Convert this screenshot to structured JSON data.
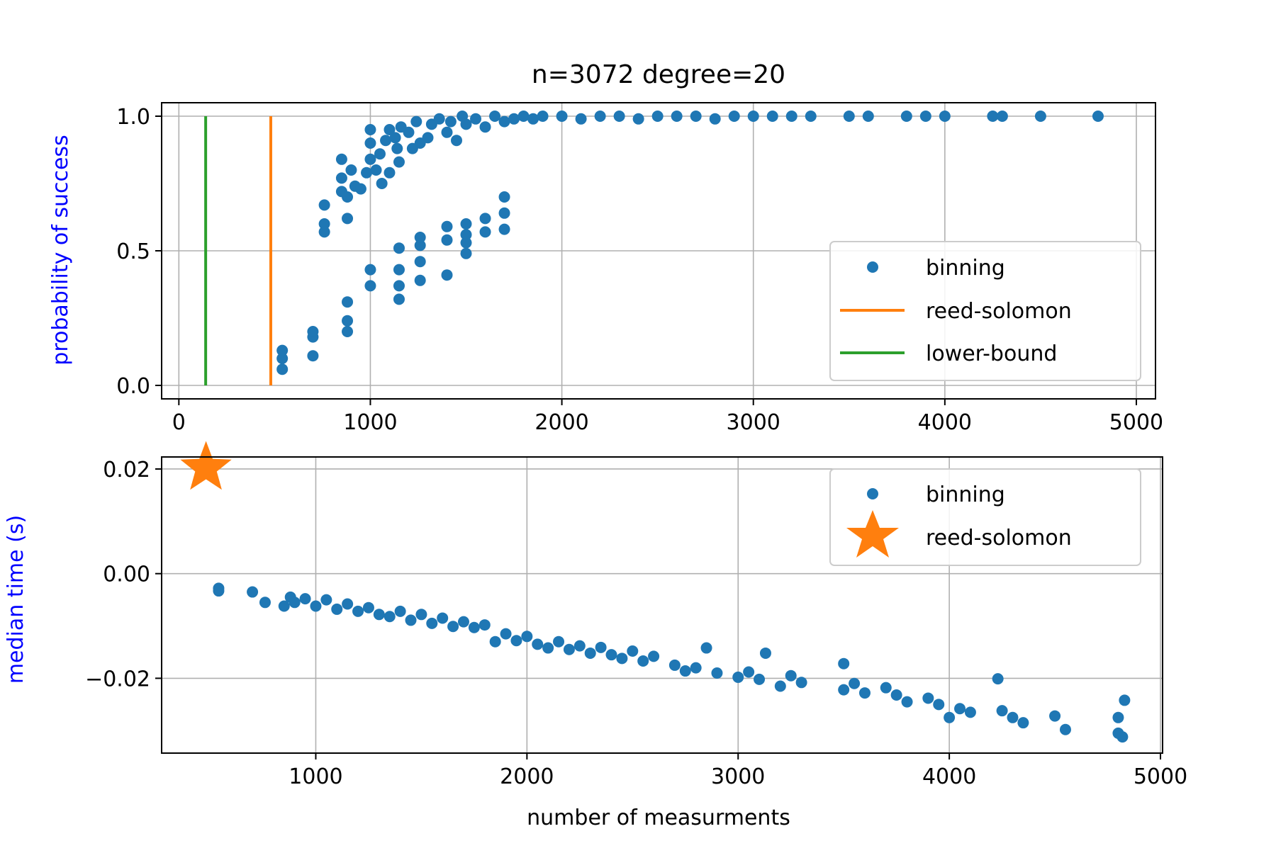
{
  "figure": {
    "title": "n=3072 degree=20"
  },
  "chart_data": [
    {
      "type": "scatter",
      "title": "n=3072 degree=20",
      "xlabel": "",
      "ylabel": "probability of success",
      "xlim": [
        -90,
        5100
      ],
      "ylim": [
        -0.05,
        1.05
      ],
      "xticks": [
        0,
        1000,
        2000,
        3000,
        4000,
        5000
      ],
      "yticks": [
        0.0,
        0.5,
        1.0
      ],
      "xtick_labels": [
        "0",
        "1000",
        "2000",
        "3000",
        "4000",
        "5000"
      ],
      "ytick_labels": [
        "0.0",
        "0.5",
        "1.0"
      ],
      "grid": true,
      "legend_position": "center-right",
      "colors": {
        "binning": "#1f77b4",
        "reed-solomon": "#ff7f0e",
        "lower-bound": "#2ca02c",
        "ylabel": "#0000ff"
      },
      "lines": [
        {
          "name": "reed-solomon",
          "x": 480,
          "y": [
            0,
            1
          ]
        },
        {
          "name": "lower-bound",
          "x": 140,
          "y": [
            0,
            1
          ]
        }
      ],
      "series": [
        {
          "name": "binning",
          "upper": [
            [
              540,
              0.06
            ],
            [
              540,
              0.1
            ],
            [
              540,
              0.13
            ],
            [
              700,
              0.11
            ],
            [
              700,
              0.18
            ],
            [
              700,
              0.2
            ],
            [
              760,
              0.57
            ],
            [
              760,
              0.6
            ],
            [
              760,
              0.67
            ],
            [
              850,
              0.72
            ],
            [
              850,
              0.77
            ],
            [
              850,
              0.84
            ],
            [
              880,
              0.62
            ],
            [
              880,
              0.7
            ],
            [
              900,
              0.8
            ],
            [
              920,
              0.74
            ],
            [
              950,
              0.73
            ],
            [
              980,
              0.79
            ],
            [
              1000,
              0.84
            ],
            [
              1000,
              0.9
            ],
            [
              1000,
              0.95
            ],
            [
              1030,
              0.8
            ],
            [
              1050,
              0.86
            ],
            [
              1060,
              0.75
            ],
            [
              1080,
              0.91
            ],
            [
              1100,
              0.79
            ],
            [
              1100,
              0.95
            ],
            [
              1130,
              0.92
            ],
            [
              1140,
              0.88
            ],
            [
              1150,
              0.83
            ],
            [
              1160,
              0.96
            ],
            [
              1200,
              0.94
            ],
            [
              1220,
              0.88
            ],
            [
              1240,
              0.98
            ],
            [
              1260,
              0.9
            ],
            [
              1300,
              0.92
            ],
            [
              1320,
              0.97
            ],
            [
              1360,
              0.99
            ],
            [
              1400,
              0.94
            ],
            [
              1420,
              0.98
            ],
            [
              1450,
              0.91
            ],
            [
              1480,
              1.0
            ],
            [
              1500,
              0.97
            ],
            [
              1550,
              0.99
            ],
            [
              1600,
              0.96
            ],
            [
              1650,
              1.0
            ],
            [
              1700,
              0.98
            ],
            [
              1750,
              0.99
            ],
            [
              1800,
              1.0
            ],
            [
              1850,
              0.99
            ],
            [
              1900,
              1.0
            ],
            [
              2000,
              1.0
            ],
            [
              2100,
              0.99
            ],
            [
              2200,
              1.0
            ],
            [
              2300,
              1.0
            ],
            [
              2400,
              0.99
            ],
            [
              2500,
              1.0
            ],
            [
              2600,
              1.0
            ],
            [
              2700,
              1.0
            ],
            [
              2800,
              0.99
            ],
            [
              2900,
              1.0
            ],
            [
              3000,
              1.0
            ],
            [
              3100,
              1.0
            ],
            [
              3200,
              1.0
            ],
            [
              3300,
              1.0
            ],
            [
              3500,
              1.0
            ],
            [
              3600,
              1.0
            ],
            [
              3800,
              1.0
            ],
            [
              3900,
              1.0
            ],
            [
              4000,
              1.0
            ],
            [
              4250,
              1.0
            ],
            [
              4300,
              1.0
            ],
            [
              4500,
              1.0
            ],
            [
              4800,
              1.0
            ]
          ],
          "lower": [
            [
              880,
              0.2
            ],
            [
              880,
              0.24
            ],
            [
              880,
              0.31
            ],
            [
              1000,
              0.37
            ],
            [
              1000,
              0.43
            ],
            [
              1150,
              0.32
            ],
            [
              1150,
              0.37
            ],
            [
              1150,
              0.43
            ],
            [
              1150,
              0.51
            ],
            [
              1260,
              0.39
            ],
            [
              1260,
              0.46
            ],
            [
              1260,
              0.52
            ],
            [
              1260,
              0.55
            ],
            [
              1400,
              0.41
            ],
            [
              1400,
              0.54
            ],
            [
              1400,
              0.59
            ],
            [
              1500,
              0.49
            ],
            [
              1500,
              0.53
            ],
            [
              1500,
              0.56
            ],
            [
              1500,
              0.6
            ],
            [
              1600,
              0.57
            ],
            [
              1600,
              0.62
            ],
            [
              1700,
              0.58
            ],
            [
              1700,
              0.64
            ],
            [
              1700,
              0.7
            ]
          ]
        }
      ]
    },
    {
      "type": "scatter",
      "title": "",
      "xlabel": "number of measurments",
      "ylabel": "median time (s)",
      "xlim": [
        270,
        5010
      ],
      "ylim": [
        -0.0343,
        0.0223
      ],
      "xticks": [
        1000,
        2000,
        3000,
        4000,
        5000
      ],
      "yticks": [
        0.02,
        0.0,
        -0.02
      ],
      "xtick_labels": [
        "1000",
        "2000",
        "3000",
        "4000",
        "5000"
      ],
      "ytick_labels": [
        "0.02",
        "0.00",
        "−0.02"
      ],
      "grid": true,
      "legend_position": "upper-right",
      "colors": {
        "binning": "#1f77b4",
        "reed-solomon": "#ff7f0e",
        "ylabel": "#0000ff"
      },
      "series": [
        {
          "name": "binning",
          "points": [
            [
              540,
              -0.0028
            ],
            [
              540,
              -0.0033
            ],
            [
              700,
              -0.0035
            ],
            [
              760,
              -0.0055
            ],
            [
              850,
              -0.0062
            ],
            [
              880,
              -0.0045
            ],
            [
              900,
              -0.0055
            ],
            [
              950,
              -0.0048
            ],
            [
              1000,
              -0.0062
            ],
            [
              1050,
              -0.005
            ],
            [
              1100,
              -0.0068
            ],
            [
              1150,
              -0.0058
            ],
            [
              1200,
              -0.0072
            ],
            [
              1250,
              -0.0065
            ],
            [
              1300,
              -0.0078
            ],
            [
              1350,
              -0.0082
            ],
            [
              1400,
              -0.0072
            ],
            [
              1450,
              -0.0089
            ],
            [
              1500,
              -0.0078
            ],
            [
              1550,
              -0.0095
            ],
            [
              1600,
              -0.0085
            ],
            [
              1650,
              -0.0101
            ],
            [
              1700,
              -0.0092
            ],
            [
              1750,
              -0.0103
            ],
            [
              1800,
              -0.0098
            ],
            [
              1850,
              -0.013
            ],
            [
              1900,
              -0.0115
            ],
            [
              1950,
              -0.0128
            ],
            [
              2000,
              -0.012
            ],
            [
              2050,
              -0.0135
            ],
            [
              2100,
              -0.0142
            ],
            [
              2150,
              -0.013
            ],
            [
              2200,
              -0.0145
            ],
            [
              2250,
              -0.0138
            ],
            [
              2300,
              -0.0152
            ],
            [
              2350,
              -0.0141
            ],
            [
              2400,
              -0.0155
            ],
            [
              2450,
              -0.0162
            ],
            [
              2500,
              -0.0148
            ],
            [
              2550,
              -0.0167
            ],
            [
              2600,
              -0.0158
            ],
            [
              2700,
              -0.0175
            ],
            [
              2750,
              -0.0186
            ],
            [
              2800,
              -0.018
            ],
            [
              2850,
              -0.0142
            ],
            [
              2900,
              -0.019
            ],
            [
              3000,
              -0.0198
            ],
            [
              3050,
              -0.0188
            ],
            [
              3100,
              -0.0202
            ],
            [
              3130,
              -0.0152
            ],
            [
              3200,
              -0.0215
            ],
            [
              3250,
              -0.0195
            ],
            [
              3300,
              -0.0208
            ],
            [
              3500,
              -0.0222
            ],
            [
              3500,
              -0.0172
            ],
            [
              3550,
              -0.021
            ],
            [
              3600,
              -0.0228
            ],
            [
              3700,
              -0.0218
            ],
            [
              3750,
              -0.0232
            ],
            [
              3800,
              -0.0245
            ],
            [
              3900,
              -0.0238
            ],
            [
              3950,
              -0.025
            ],
            [
              4000,
              -0.0275
            ],
            [
              4050,
              -0.0258
            ],
            [
              4100,
              -0.0265
            ],
            [
              4230,
              -0.0201
            ],
            [
              4250,
              -0.0262
            ],
            [
              4300,
              -0.0275
            ],
            [
              4350,
              -0.0285
            ],
            [
              4500,
              -0.0272
            ],
            [
              4550,
              -0.0298
            ],
            [
              4800,
              -0.0305
            ],
            [
              4800,
              -0.0275
            ],
            [
              4820,
              -0.0312
            ],
            [
              4830,
              -0.0242
            ]
          ]
        },
        {
          "name": "reed-solomon",
          "points": [
            [
              480,
              0.0202
            ]
          ]
        }
      ]
    }
  ],
  "legends": {
    "top": [
      "binning",
      "reed-solomon",
      "lower-bound"
    ],
    "bottom": [
      "binning",
      "reed-solomon"
    ]
  }
}
